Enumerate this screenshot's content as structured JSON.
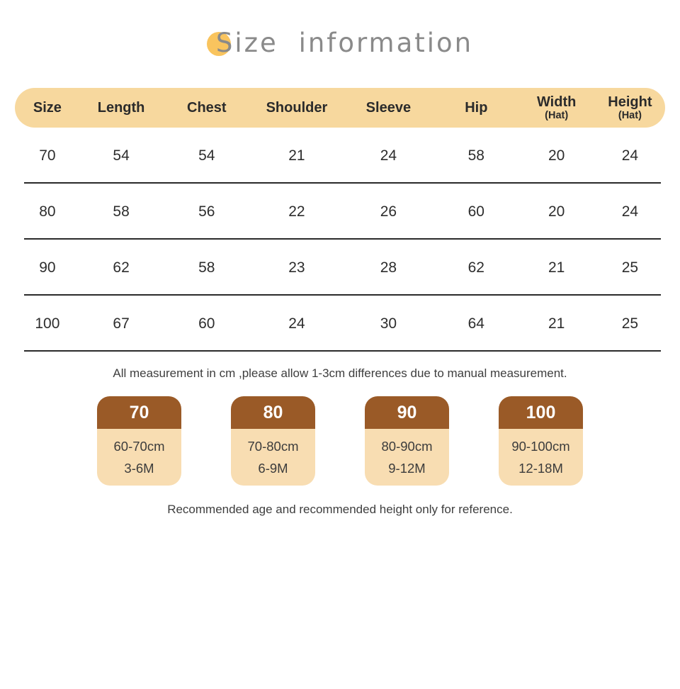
{
  "title": {
    "text": "Size information"
  },
  "table": {
    "headers": [
      {
        "label": "Size"
      },
      {
        "label": "Length"
      },
      {
        "label": "Chest"
      },
      {
        "label": "Shoulder"
      },
      {
        "label": "Sleeve"
      },
      {
        "label": "Hip"
      },
      {
        "label": "Width",
        "sub": "(Hat)"
      },
      {
        "label": "Height",
        "sub": "(Hat)"
      }
    ],
    "rows": [
      [
        "70",
        "54",
        "54",
        "21",
        "24",
        "58",
        "20",
        "24"
      ],
      [
        "80",
        "58",
        "56",
        "22",
        "26",
        "60",
        "20",
        "24"
      ],
      [
        "90",
        "62",
        "58",
        "23",
        "28",
        "62",
        "21",
        "25"
      ],
      [
        "100",
        "67",
        "60",
        "24",
        "30",
        "64",
        "21",
        "25"
      ]
    ]
  },
  "notes": {
    "measurement": "All measurement in cm ,please allow 1-3cm differences due to manual measurement.",
    "reference": "Recommended age and recommended height only for reference."
  },
  "size_cards": [
    {
      "size": "70",
      "height_range": "60-70cm",
      "age_range": "3-6M"
    },
    {
      "size": "80",
      "height_range": "70-80cm",
      "age_range": "6-9M"
    },
    {
      "size": "90",
      "height_range": "80-90cm",
      "age_range": "9-12M"
    },
    {
      "size": "100",
      "height_range": "90-100cm",
      "age_range": "12-18M"
    }
  ],
  "colors": {
    "header_bg": "#f7d89e",
    "accent_dot": "#f9c45e",
    "title_color": "#8a8a8a",
    "text_dark": "#2d2d2d",
    "divider": "#2a2a2a",
    "card_header_bg": "#9a5a27",
    "card_header_text": "#ffffff",
    "card_body_bg": "#f8ddb2",
    "card_body_text": "#3c3c3c",
    "note_color": "#3e3e3e",
    "page_bg": "#ffffff"
  },
  "chart_data": {
    "type": "table",
    "title": "Size information",
    "columns": [
      "Size",
      "Length",
      "Chest",
      "Shoulder",
      "Sleeve",
      "Hip",
      "Width (Hat)",
      "Height (Hat)"
    ],
    "rows": [
      [
        70,
        54,
        54,
        21,
        24,
        58,
        20,
        24
      ],
      [
        80,
        58,
        56,
        22,
        26,
        60,
        20,
        24
      ],
      [
        90,
        62,
        58,
        23,
        28,
        62,
        21,
        25
      ],
      [
        100,
        67,
        60,
        24,
        30,
        64,
        21,
        25
      ]
    ],
    "units": "cm",
    "notes": [
      "All measurement in cm ,please allow 1-3cm differences due to manual measurement.",
      "Recommended age and recommended height only for reference."
    ],
    "size_guide": [
      {
        "size": 70,
        "height": "60-70cm",
        "age": "3-6M"
      },
      {
        "size": 80,
        "height": "70-80cm",
        "age": "6-9M"
      },
      {
        "size": 90,
        "height": "80-90cm",
        "age": "9-12M"
      },
      {
        "size": 100,
        "height": "90-100cm",
        "age": "12-18M"
      }
    ]
  }
}
